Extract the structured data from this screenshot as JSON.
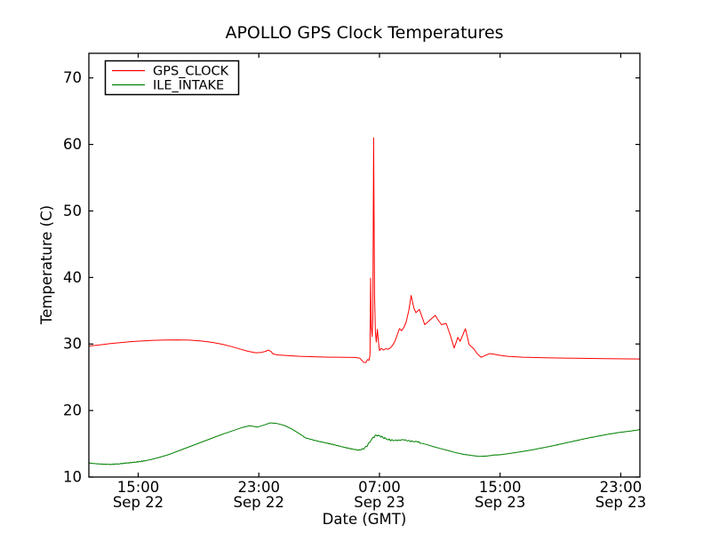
{
  "chart_data": {
    "type": "line",
    "title": "APOLLO GPS Clock Temperatures",
    "xlabel": "Date (GMT)",
    "ylabel": "Temperature (C)",
    "grid": false,
    "legend_position": "upper left",
    "background": "#ffffff",
    "axis_color": "#000000",
    "x_unit": "hours since Sep 22 00:00 GMT",
    "xlim": [
      11.73,
      48.27
    ],
    "ylim": [
      10,
      73.7
    ],
    "yticks": [
      10,
      20,
      30,
      40,
      50,
      60,
      70
    ],
    "xticks": [
      {
        "value": 15,
        "time": "15:00",
        "date": "Sep 22"
      },
      {
        "value": 23,
        "time": "23:00",
        "date": "Sep 22"
      },
      {
        "value": 31,
        "time": "07:00",
        "date": "Sep 23"
      },
      {
        "value": 39,
        "time": "15:00",
        "date": "Sep 23"
      },
      {
        "value": 47,
        "time": "23:00",
        "date": "Sep 23"
      }
    ],
    "series": [
      {
        "name": "GPS_CLOCK",
        "color": "#ff0000",
        "noise_regions": [],
        "points": [
          [
            11.73,
            29.7
          ],
          [
            12.4,
            29.85
          ],
          [
            13.1,
            30.05
          ],
          [
            13.8,
            30.2
          ],
          [
            14.5,
            30.35
          ],
          [
            15.2,
            30.45
          ],
          [
            16,
            30.55
          ],
          [
            16.8,
            30.6
          ],
          [
            17.6,
            30.62
          ],
          [
            18.4,
            30.58
          ],
          [
            19.2,
            30.45
          ],
          [
            19.9,
            30.25
          ],
          [
            20.6,
            29.95
          ],
          [
            21.2,
            29.6
          ],
          [
            21.8,
            29.2
          ],
          [
            22.3,
            28.9
          ],
          [
            22.8,
            28.68
          ],
          [
            23.15,
            28.72
          ],
          [
            23.45,
            28.9
          ],
          [
            23.63,
            29.08
          ],
          [
            23.8,
            28.88
          ],
          [
            23.95,
            28.5
          ],
          [
            24.3,
            28.35
          ],
          [
            24.9,
            28.25
          ],
          [
            25.7,
            28.15
          ],
          [
            26.7,
            28.08
          ],
          [
            27.7,
            28.02
          ],
          [
            28.7,
            28.0
          ],
          [
            29.4,
            27.97
          ],
          [
            29.7,
            27.85
          ],
          [
            29.95,
            27.25
          ],
          [
            30.1,
            27.2
          ],
          [
            30.2,
            27.65
          ],
          [
            30.3,
            27.55
          ],
          [
            30.37,
            28.3
          ],
          [
            30.41,
            39.9
          ],
          [
            30.46,
            32.5
          ],
          [
            30.51,
            31.1
          ],
          [
            30.56,
            34.0
          ],
          [
            30.61,
            61.0
          ],
          [
            30.67,
            37.5
          ],
          [
            30.73,
            31.8
          ],
          [
            30.79,
            30.3
          ],
          [
            30.86,
            32.2
          ],
          [
            30.93,
            30.4
          ],
          [
            31.0,
            29.0
          ],
          [
            31.12,
            29.35
          ],
          [
            31.27,
            29.1
          ],
          [
            31.42,
            29.3
          ],
          [
            31.57,
            29.2
          ],
          [
            31.72,
            29.4
          ],
          [
            31.87,
            29.8
          ],
          [
            32.02,
            30.4
          ],
          [
            32.17,
            31.3
          ],
          [
            32.32,
            32.3
          ],
          [
            32.47,
            32.0
          ],
          [
            32.62,
            32.5
          ],
          [
            32.77,
            33.3
          ],
          [
            32.95,
            35.1
          ],
          [
            33.1,
            37.3
          ],
          [
            33.28,
            35.4
          ],
          [
            33.42,
            34.7
          ],
          [
            33.65,
            35.2
          ],
          [
            34.0,
            32.9
          ],
          [
            34.35,
            33.6
          ],
          [
            34.7,
            34.3
          ],
          [
            34.92,
            33.5
          ],
          [
            35.12,
            32.9
          ],
          [
            35.42,
            33.1
          ],
          [
            35.7,
            31.3
          ],
          [
            35.95,
            29.4
          ],
          [
            36.2,
            31.0
          ],
          [
            36.35,
            30.4
          ],
          [
            36.7,
            32.3
          ],
          [
            36.95,
            29.9
          ],
          [
            37.25,
            29.3
          ],
          [
            37.5,
            28.5
          ],
          [
            37.75,
            28.0
          ],
          [
            38.0,
            28.25
          ],
          [
            38.3,
            28.55
          ],
          [
            38.6,
            28.45
          ],
          [
            39.0,
            28.3
          ],
          [
            39.5,
            28.15
          ],
          [
            40.5,
            28.02
          ],
          [
            42.0,
            27.92
          ],
          [
            44.0,
            27.85
          ],
          [
            46.0,
            27.8
          ],
          [
            48.27,
            27.75
          ]
        ]
      },
      {
        "name": "ILE_INTAKE",
        "color": "#008000",
        "noise_regions": [
          {
            "from": 11.73,
            "to": 15.5,
            "amp": 0.07
          },
          {
            "from": 25.8,
            "to": 29.6,
            "amp": 0.06
          },
          {
            "from": 29.6,
            "to": 31.7,
            "amp": 0.17
          },
          {
            "from": 31.7,
            "to": 33.7,
            "amp": 0.12
          },
          {
            "from": 36.3,
            "to": 39.3,
            "amp": 0.05
          },
          {
            "from": 41.5,
            "to": 48.27,
            "amp": 0.04
          }
        ],
        "points": [
          [
            11.73,
            12.1
          ],
          [
            12.2,
            12.0
          ],
          [
            12.7,
            11.92
          ],
          [
            13.2,
            11.9
          ],
          [
            13.7,
            11.98
          ],
          [
            14.2,
            12.1
          ],
          [
            14.7,
            12.2
          ],
          [
            15.2,
            12.35
          ],
          [
            15.8,
            12.6
          ],
          [
            16.4,
            12.95
          ],
          [
            17.0,
            13.35
          ],
          [
            17.7,
            13.95
          ],
          [
            18.4,
            14.55
          ],
          [
            19.1,
            15.15
          ],
          [
            19.8,
            15.75
          ],
          [
            20.5,
            16.35
          ],
          [
            21.2,
            16.9
          ],
          [
            21.9,
            17.45
          ],
          [
            22.4,
            17.7
          ],
          [
            22.9,
            17.5
          ],
          [
            23.4,
            17.85
          ],
          [
            23.75,
            18.15
          ],
          [
            24.2,
            18.05
          ],
          [
            24.7,
            17.75
          ],
          [
            25.2,
            17.2
          ],
          [
            25.7,
            16.5
          ],
          [
            26.1,
            15.9
          ],
          [
            26.45,
            15.65
          ],
          [
            26.8,
            15.45
          ],
          [
            27.3,
            15.2
          ],
          [
            28.0,
            14.85
          ],
          [
            28.7,
            14.45
          ],
          [
            29.3,
            14.15
          ],
          [
            29.6,
            14.05
          ],
          [
            29.9,
            14.2
          ],
          [
            30.15,
            14.6
          ],
          [
            30.4,
            15.4
          ],
          [
            30.6,
            16.0
          ],
          [
            30.8,
            16.25
          ],
          [
            31.0,
            16.2
          ],
          [
            31.2,
            16.05
          ],
          [
            31.45,
            15.7
          ],
          [
            31.7,
            15.55
          ],
          [
            32.0,
            15.5
          ],
          [
            32.3,
            15.55
          ],
          [
            32.6,
            15.6
          ],
          [
            32.9,
            15.45
          ],
          [
            33.2,
            15.35
          ],
          [
            33.5,
            15.3
          ],
          [
            33.75,
            15.1
          ],
          [
            34.1,
            14.9
          ],
          [
            34.6,
            14.55
          ],
          [
            35.1,
            14.25
          ],
          [
            35.6,
            13.95
          ],
          [
            36.1,
            13.65
          ],
          [
            36.6,
            13.4
          ],
          [
            37.1,
            13.25
          ],
          [
            37.6,
            13.1
          ],
          [
            38.1,
            13.15
          ],
          [
            38.6,
            13.3
          ],
          [
            39.0,
            13.35
          ],
          [
            39.5,
            13.5
          ],
          [
            40.1,
            13.7
          ],
          [
            40.8,
            13.95
          ],
          [
            41.5,
            14.25
          ],
          [
            42.3,
            14.6
          ],
          [
            43.1,
            15.0
          ],
          [
            43.9,
            15.4
          ],
          [
            44.7,
            15.8
          ],
          [
            45.5,
            16.15
          ],
          [
            46.2,
            16.45
          ],
          [
            46.9,
            16.7
          ],
          [
            47.6,
            16.9
          ],
          [
            48.1,
            17.05
          ],
          [
            48.27,
            17.2
          ]
        ]
      }
    ],
    "legend": {
      "entries": [
        "GPS_CLOCK",
        "ILE_INTAKE"
      ]
    }
  }
}
